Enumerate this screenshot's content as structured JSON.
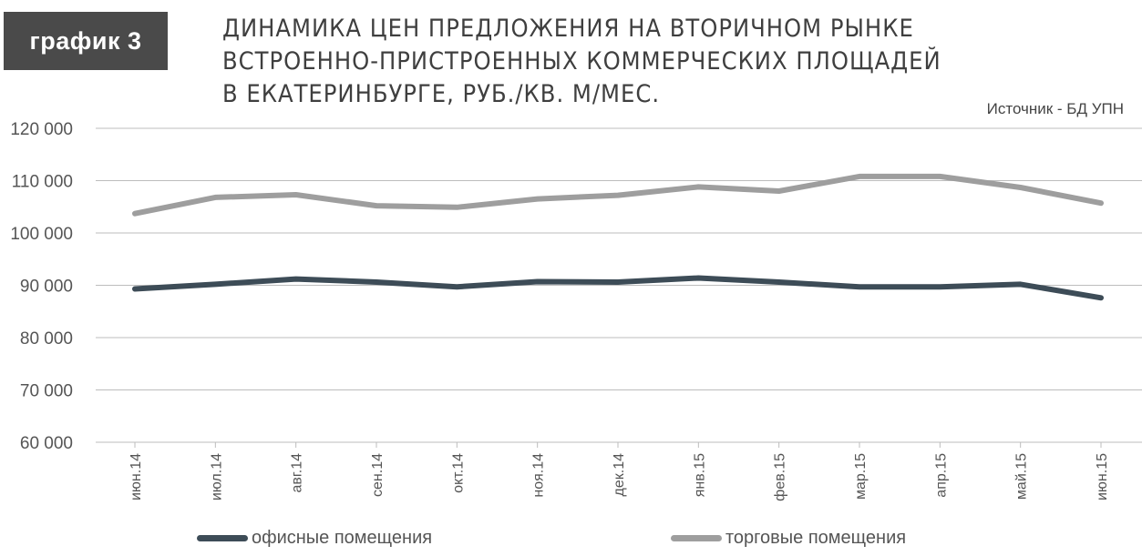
{
  "badge": {
    "label": "график 3"
  },
  "title_lines": [
    "ДИНАМИКА ЦЕН ПРЕДЛОЖЕНИЯ НА ВТОРИЧНОМ РЫНКЕ",
    "ВСТРОЕННО-ПРИСТРОЕННЫХ КОММЕРЧЕСКИХ ПЛОЩАДЕЙ",
    "В ЕКАТЕРИНБУРГЕ, РУБ./КВ. М/МЕС."
  ],
  "source": "Источник - БД УПН",
  "colors": {
    "office": "#3d4c57",
    "retail": "#9e9e9e",
    "grid": "#bdbdbd"
  },
  "chart_data": {
    "type": "line",
    "title": "ДИНАМИКА ЦЕН ПРЕДЛОЖЕНИЯ НА ВТОРИЧНОМ РЫНКЕ ВСТРОЕННО-ПРИСТРОЕННЫХ КОММЕРЧЕСКИХ ПЛОЩАДЕЙ В ЕКАТЕРИНБУРГЕ, РУБ./КВ. М/МЕС.",
    "categories": [
      "июн.14",
      "июл.14",
      "авг.14",
      "сен.14",
      "окт.14",
      "ноя.14",
      "дек.14",
      "янв.15",
      "фев.15",
      "мар.15",
      "апр.15",
      "май.15",
      "июн.15"
    ],
    "ylim": [
      60000,
      120000
    ],
    "yticks": [
      60000,
      70000,
      80000,
      90000,
      100000,
      110000,
      120000
    ],
    "ytick_labels": [
      "60 000",
      "70 000",
      "80 000",
      "90 000",
      "100 000",
      "110 000",
      "120 000"
    ],
    "grid": true,
    "legend_position": "bottom",
    "series": [
      {
        "name": "офисные помещения",
        "values": [
          89300,
          90200,
          91200,
          90600,
          89700,
          90700,
          90600,
          91400,
          90600,
          89700,
          89700,
          90200,
          87600
        ]
      },
      {
        "name": "торговые помещения",
        "values": [
          103700,
          106800,
          107300,
          105200,
          104900,
          106500,
          107200,
          108800,
          108000,
          110800,
          110800,
          108700,
          105700
        ]
      }
    ]
  }
}
